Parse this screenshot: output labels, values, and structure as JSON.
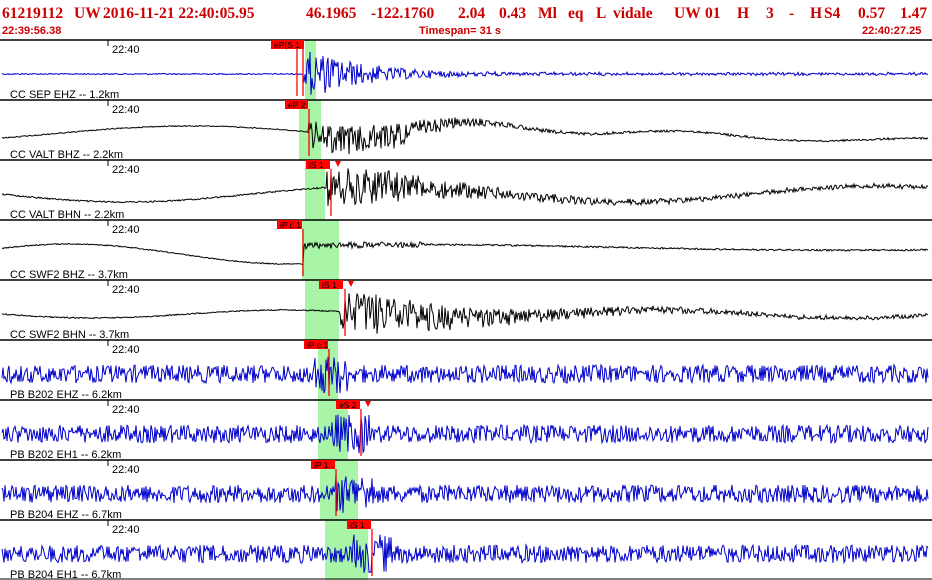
{
  "header": {
    "event_id": "61219112",
    "network": "UW",
    "origin_time": "2016-11-21 22:40:05.95",
    "latitude": "46.1965",
    "longitude": "-122.1760",
    "depth": "2.04",
    "magnitude": "0.43",
    "magnitude_type": "Ml",
    "event_type": "eq",
    "location_type": "L",
    "author": "vidale",
    "source": "UW",
    "version": "01",
    "flag_h": "H",
    "count": "3",
    "dash": "-",
    "subsource": "H",
    "code": "S4",
    "rms": "0.57",
    "error": "1.47"
  },
  "time_bar": {
    "start_time": "22:39:56.38",
    "timespan": "Timespan=  31 s",
    "end_time": "22:40:27.25"
  },
  "colors": {
    "header_text": "#cc0000",
    "pick_box": "#ff0000",
    "pick_window": "#a8f5a8",
    "trace_vertical": "#000000",
    "trace_blue": "#0000cc",
    "panel_border": "#000000"
  },
  "panels": [
    {
      "label": "CC SEP EHZ -- 1.2km",
      "time_tick": "22:40",
      "picks": [
        {
          "label": "eP(S 1"
        }
      ]
    },
    {
      "label": "CC VALT BHZ -- 2.2km",
      "time_tick": "22:40",
      "picks": [
        {
          "label": "eP 2"
        }
      ]
    },
    {
      "label": "CC VALT BHN -- 2.2km",
      "time_tick": "22:40",
      "picks": [
        {
          "label": "iS 1"
        }
      ]
    },
    {
      "label": "CC SWF2 BHZ -- 3.7km",
      "time_tick": "22:40",
      "picks": [
        {
          "label": "iP c 1"
        }
      ]
    },
    {
      "label": "CC SWF2 BHN -- 3.7km",
      "time_tick": "22:40",
      "picks": [
        {
          "label": "iS 1"
        }
      ]
    },
    {
      "label": "PB B202 EHZ -- 6.2km",
      "time_tick": "22:40",
      "picks": [
        {
          "label": "iP c 1"
        }
      ]
    },
    {
      "label": "PB B202 EH1 -- 6.2km",
      "time_tick": "22:40",
      "picks": [
        {
          "label": "eS 2"
        }
      ]
    },
    {
      "label": "PB B204 EHZ -- 6.7km",
      "time_tick": "22:40",
      "picks": [
        {
          "label": "iP 1"
        }
      ]
    },
    {
      "label": "PB B204 EH1 -- 6.7km",
      "time_tick": "22:40",
      "picks": [
        {
          "label": "iS 1"
        }
      ]
    }
  ]
}
